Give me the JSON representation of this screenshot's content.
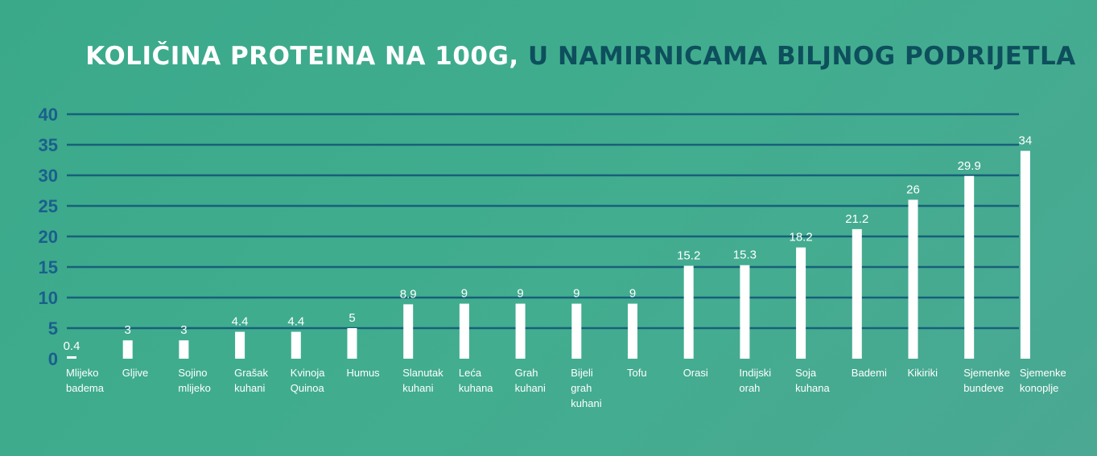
{
  "title": {
    "part1": "KOLIČINA PROTEINA NA 100G,",
    "part2": "U NAMIRNICAMA BILJNOG PODRIJETLA"
  },
  "colors": {
    "title_light": "#ffffff",
    "title_dark": "#0d4f5c",
    "gridline": "#17607a",
    "bar": "#ffffff",
    "ytick": "#1a5f8c"
  },
  "chart_data": {
    "type": "bar",
    "title": "KOLIČINA PROTEINA NA 100G, U NAMIRNICAMA BILJNOG PODRIJETLA",
    "categories": [
      [
        "Mlijeko",
        "badema"
      ],
      [
        "Gljive"
      ],
      [
        "Sojino",
        "mlijeko"
      ],
      [
        "Grašak",
        "kuhani"
      ],
      [
        "Kvinoja",
        "Quinoa"
      ],
      [
        "Humus"
      ],
      [
        "Slanutak",
        "kuhani"
      ],
      [
        "Leća",
        "kuhana"
      ],
      [
        "Grah",
        "kuhani"
      ],
      [
        "Bijeli",
        "grah",
        "kuhani"
      ],
      [
        "Tofu"
      ],
      [
        "Orasi"
      ],
      [
        "Indijski",
        "orah"
      ],
      [
        "Soja",
        "kuhana"
      ],
      [
        "Bademi"
      ],
      [
        "Kikiriki"
      ],
      [
        "Sjemenke",
        "bundeve"
      ],
      [
        "Sjemenke",
        "konoplje"
      ]
    ],
    "values": [
      0.4,
      3,
      3,
      4.4,
      4.4,
      5,
      8.9,
      9,
      9,
      9,
      9,
      15.2,
      15.3,
      18.2,
      21.2,
      26,
      29.9,
      34
    ],
    "value_labels": [
      "0.4",
      "3",
      "3",
      "4.4",
      "4.4",
      "5",
      "8.9",
      "9",
      "9",
      "9",
      "9",
      "15.2",
      "15.3",
      "18.2",
      "21.2",
      "26",
      "29.9",
      "34"
    ],
    "yticks": [
      0,
      5,
      10,
      15,
      20,
      25,
      30,
      35,
      40
    ],
    "ylim": [
      0,
      40
    ],
    "grid": true,
    "legend": "none"
  }
}
